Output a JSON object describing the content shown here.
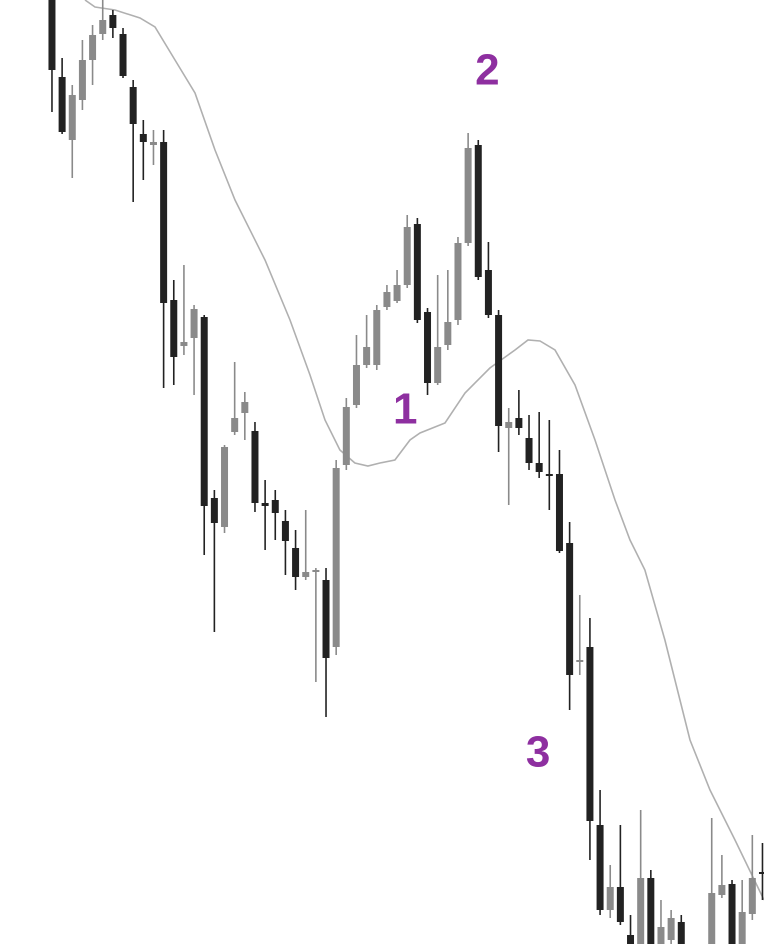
{
  "chart_data": {
    "type": "candlestick",
    "xlim": [
      -5.12,
      70.15
    ],
    "ylim": [
      0,
      944
    ],
    "up_color": "#8a8a8a",
    "down_color": "#222222",
    "x": [
      0,
      1,
      2,
      3,
      4,
      5,
      6,
      7,
      8,
      9,
      10,
      11,
      12,
      13,
      14,
      15,
      16,
      17,
      18,
      19,
      20,
      21,
      22,
      23,
      24,
      25,
      26,
      27,
      28,
      29,
      30,
      31,
      32,
      33,
      34,
      35,
      36,
      37,
      38,
      39,
      40,
      41,
      42,
      43,
      44,
      45,
      46,
      47,
      48,
      49,
      50,
      51,
      52,
      53,
      54,
      55,
      56,
      57,
      58,
      59,
      60,
      61,
      62,
      65,
      66,
      67,
      68,
      69,
      70
    ],
    "open": [
      944,
      867,
      804,
      844,
      884,
      910,
      929,
      910,
      857,
      810,
      799,
      802,
      644,
      598,
      606,
      627,
      446,
      417,
      512,
      531,
      513,
      441,
      444,
      423,
      396,
      367,
      372,
      364,
      297,
      479,
      539,
      579,
      579,
      637,
      643,
      659,
      720,
      632,
      561,
      599,
      624,
      701,
      799,
      674,
      629,
      516,
      526,
      506,
      481,
      470,
      470,
      401,
      282,
      297,
      119,
      34,
      57,
      9,
      -5,
      66,
      -5,
      4,
      22,
      -5,
      49,
      60,
      -5,
      30,
      72
    ],
    "high": [
      954,
      886,
      859,
      904,
      919,
      944,
      934,
      916,
      864,
      824,
      814,
      814,
      664,
      679,
      639,
      629,
      454,
      499,
      582,
      552,
      522,
      464,
      454,
      434,
      414,
      434,
      376,
      376,
      484,
      546,
      609,
      629,
      639,
      659,
      674,
      729,
      726,
      636,
      669,
      674,
      707,
      811,
      804,
      702,
      634,
      536,
      554,
      529,
      532,
      524,
      494,
      422,
      349,
      326,
      154,
      79,
      119,
      29,
      134,
      74,
      44,
      34,
      29,
      126,
      89,
      64,
      64,
      109,
      101
    ],
    "low": [
      832,
      810,
      766,
      834,
      859,
      904,
      906,
      866,
      742,
      764,
      779,
      556,
      559,
      589,
      549,
      389,
      312,
      411,
      509,
      504,
      432,
      394,
      404,
      369,
      354,
      364,
      262,
      227,
      289,
      474,
      536,
      576,
      574,
      634,
      641,
      656,
      621,
      549,
      559,
      594,
      619,
      698,
      664,
      626,
      492,
      439,
      509,
      474,
      466,
      434,
      391,
      234,
      269,
      84,
      29,
      26,
      19,
      -10,
      -10,
      -10,
      -10,
      -5,
      -10,
      -10,
      46,
      -10,
      -10,
      24,
      44
    ],
    "close": [
      874,
      812,
      849,
      884,
      909,
      924,
      916,
      868,
      820,
      802,
      802,
      641,
      587,
      602,
      635,
      438,
      421,
      497,
      526,
      542,
      441,
      438,
      431,
      403,
      367,
      372,
      374,
      286,
      476,
      537,
      579,
      597,
      634,
      652,
      659,
      717,
      624,
      561,
      597,
      622,
      701,
      796,
      667,
      629,
      518,
      522,
      516,
      481,
      472,
      468,
      393,
      269,
      284,
      123,
      34,
      57,
      22,
      -5,
      66,
      -5,
      17,
      26,
      -5,
      51,
      59,
      -5,
      32,
      66,
      70
    ],
    "moving_average": {
      "color": "#b0b0b0",
      "x": [
        3.25,
        4.24,
        6.21,
        8.67,
        10.15,
        12.12,
        14.09,
        16.06,
        18.03,
        20.99,
        23.45,
        25.42,
        26.9,
        28.37,
        29.85,
        31.13,
        32.32,
        33.79,
        35.27,
        36.26,
        38.72,
        40.69,
        43.15,
        45.62,
        46.9,
        48.08,
        49.56,
        51.53,
        53.5,
        55.47,
        56.95,
        58.42,
        60.39,
        62.86,
        64.83,
        67.29,
        70.15
      ],
      "values": [
        944,
        937,
        934,
        926,
        917,
        884,
        851,
        794,
        744,
        684,
        624,
        569,
        524,
        494,
        481,
        478,
        481,
        484,
        504,
        511,
        521,
        551,
        576,
        594,
        604,
        603,
        594,
        559,
        504,
        444,
        404,
        374,
        304,
        204,
        154,
        104,
        44
      ]
    },
    "annotations": [
      {
        "text": "1",
        "x": 34.8,
        "y": 532
      },
      {
        "text": "2",
        "x": 42.9,
        "y": 871
      },
      {
        "text": "3",
        "x": 47.9,
        "y": 189
      }
    ],
    "annotation_color": "#8e2fa0"
  }
}
